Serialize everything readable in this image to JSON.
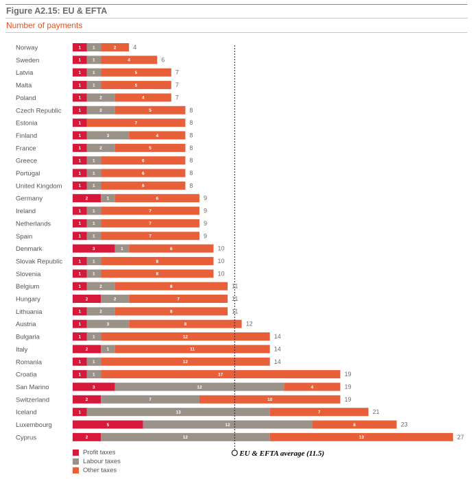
{
  "figure": {
    "title": "Figure A2.15: EU & EFTA",
    "subtitle": "Number of payments"
  },
  "colors": {
    "profit": "#d6183a",
    "labour": "#9a9189",
    "other": "#e8603a"
  },
  "legend": [
    {
      "label": "Profit taxes",
      "color": "#d6183a"
    },
    {
      "label": "Labour taxes",
      "color": "#9a9189"
    },
    {
      "label": "Other taxes",
      "color": "#e8603a"
    }
  ],
  "chart_data": {
    "type": "bar",
    "orientation": "horizontal",
    "stacked": true,
    "categories": [
      "Norway",
      "Sweden",
      "Latvia",
      "Malta",
      "Poland",
      "Czech Republic",
      "Estonia",
      "Finland",
      "France",
      "Greece",
      "Portugal",
      "United Kingdom",
      "Germany",
      "Ireland",
      "Netherlands",
      "Spain",
      "Denmark",
      "Slovak Republic",
      "Slovenia",
      "Belgium",
      "Hungary",
      "Lithuania",
      "Austria",
      "Bulgaria",
      "Italy",
      "Romania",
      "Croatia",
      "San Marino",
      "Switzerland",
      "Iceland",
      "Luxembourg",
      "Cyprus"
    ],
    "series": [
      {
        "name": "Profit taxes",
        "values": [
          1,
          1,
          1,
          1,
          1,
          1,
          1,
          1,
          1,
          1,
          1,
          1,
          2,
          1,
          1,
          1,
          3,
          1,
          1,
          1,
          2,
          1,
          1,
          1,
          2,
          1,
          1,
          3,
          2,
          1,
          5,
          2
        ]
      },
      {
        "name": "Labour taxes",
        "values": [
          1,
          1,
          1,
          1,
          2,
          2,
          0,
          3,
          2,
          1,
          1,
          1,
          1,
          1,
          1,
          1,
          1,
          1,
          1,
          2,
          2,
          2,
          3,
          1,
          1,
          1,
          1,
          12,
          7,
          13,
          12,
          12
        ]
      },
      {
        "name": "Other taxes",
        "values": [
          2,
          4,
          5,
          5,
          4,
          5,
          7,
          4,
          5,
          6,
          6,
          6,
          6,
          7,
          7,
          7,
          6,
          8,
          8,
          8,
          7,
          8,
          8,
          12,
          11,
          12,
          17,
          4,
          10,
          7,
          6,
          13
        ]
      }
    ],
    "totals": [
      4,
      6,
      7,
      7,
      7,
      8,
      8,
      8,
      8,
      8,
      8,
      8,
      9,
      9,
      9,
      9,
      10,
      10,
      10,
      11,
      11,
      11,
      12,
      14,
      14,
      14,
      19,
      19,
      19,
      21,
      23,
      27
    ],
    "average": {
      "value": 11.5,
      "label": "EU & EFTA average (11.5)"
    },
    "xlim": [
      0,
      27
    ],
    "grid": false,
    "legend_position": "bottom-left"
  }
}
